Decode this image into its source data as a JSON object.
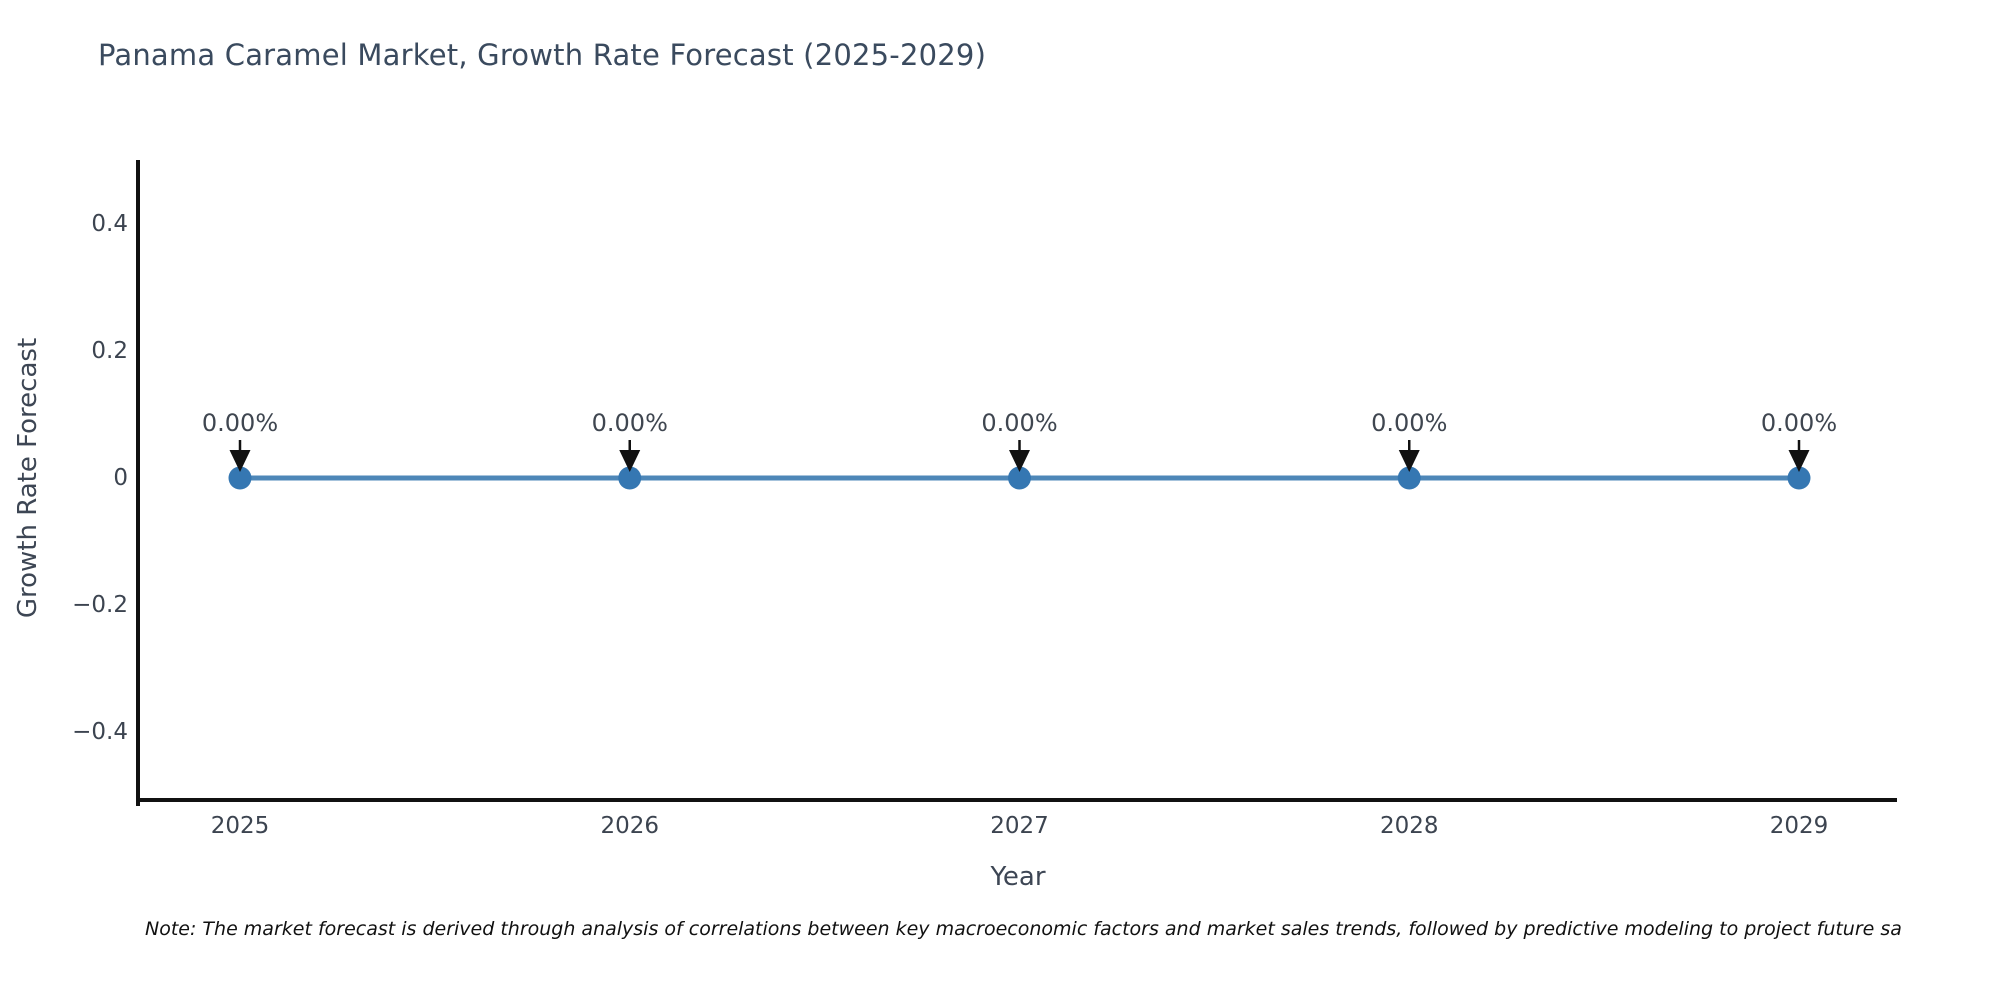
{
  "page": {
    "background": "#ffffff"
  },
  "chart_data": {
    "type": "line",
    "title": "Panama Caramel Market, Growth Rate Forecast (2025-2029)",
    "xlabel": "Year",
    "ylabel": "Growth Rate Forecast",
    "categories": [
      "2025",
      "2026",
      "2027",
      "2028",
      "2029"
    ],
    "series": [
      {
        "name": "Growth Rate Forecast",
        "values": [
          0,
          0,
          0,
          0,
          0
        ]
      }
    ],
    "point_labels": [
      "0.00%",
      "0.00%",
      "0.00%",
      "0.00%",
      "0.00%"
    ],
    "annotation_arrow": "down",
    "marker": "circle",
    "ylim": [
      -0.5,
      0.5
    ],
    "yticks": [
      0.4,
      0.2,
      0,
      -0.2,
      -0.4
    ],
    "ytick_labels": [
      "0.4",
      "0.2",
      "0",
      "−0.2",
      "−0.4"
    ],
    "xtick_labels": [
      "2025",
      "2026",
      "2027",
      "2028",
      "2029"
    ],
    "grid": false,
    "legend": "none",
    "colors": {
      "line": "#4e87b8",
      "marker": "#3577b2",
      "axis": "#111111",
      "arrow": "#111111",
      "title_text": "#3a4a5e",
      "tick_text": "#3c4450",
      "annotation_text": "#3f4650",
      "axis_label_text": "#3d4654",
      "note_text": "#111111"
    }
  },
  "note": {
    "text": "Note: The market forecast is derived through analysis of correlations between key macroeconomic factors and market sales trends, followed by predictive modeling to project future sa"
  }
}
